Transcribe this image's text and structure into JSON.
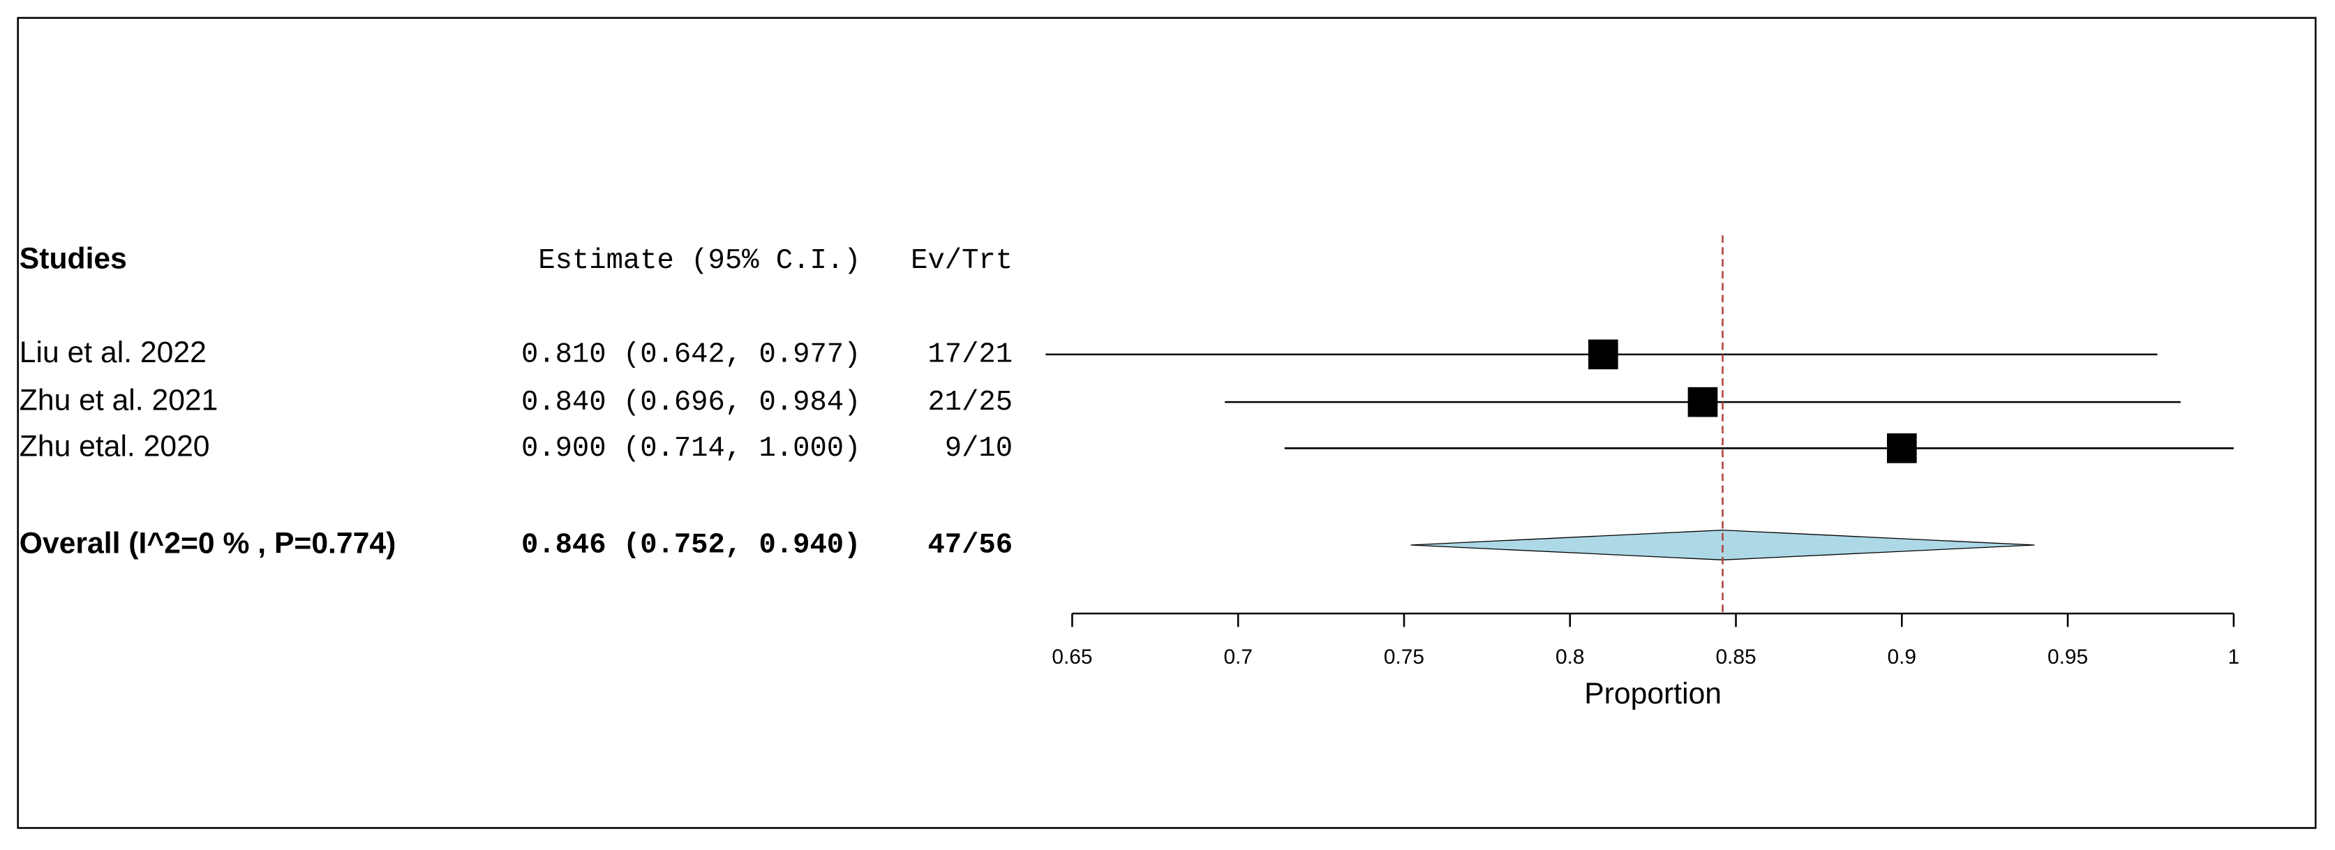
{
  "chart_data": {
    "type": "forest",
    "headers": {
      "studies": "Studies",
      "estimate": "Estimate (95% C.I.)",
      "events": "Ev/Trt"
    },
    "studies": [
      {
        "name": "Liu et al. 2022",
        "value": 0.81,
        "lower": 0.642,
        "upper": 0.977,
        "value_label": "0.810 (0.642, 0.977)",
        "events": "17/21"
      },
      {
        "name": "Zhu et al. 2021",
        "value": 0.84,
        "lower": 0.696,
        "upper": 0.984,
        "value_label": "0.840 (0.696, 0.984)",
        "events": "21/25"
      },
      {
        "name": "Zhu etal. 2020",
        "value": 0.9,
        "lower": 0.714,
        "upper": 1.0,
        "value_label": "0.900 (0.714, 1.000)",
        "events": "9/10"
      }
    ],
    "overall": {
      "name": "Overall (I^2=0 % , P=0.774)",
      "value": 0.846,
      "lower": 0.752,
      "upper": 0.94,
      "value_label": "0.846 (0.752, 0.940)",
      "events": "47/56"
    },
    "xlabel": "Proportion",
    "xlim": [
      0.65,
      1
    ],
    "xticks": [
      0.65,
      0.7,
      0.75,
      0.8,
      0.85,
      0.9,
      0.95,
      1
    ],
    "colors": {
      "box": "#000000",
      "diamond": "#add8e6",
      "reference": "#b0413e"
    }
  }
}
